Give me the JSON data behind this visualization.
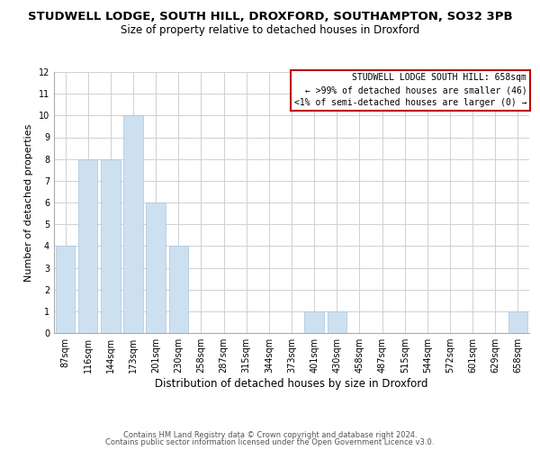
{
  "title": "STUDWELL LODGE, SOUTH HILL, DROXFORD, SOUTHAMPTON, SO32 3PB",
  "subtitle": "Size of property relative to detached houses in Droxford",
  "xlabel": "Distribution of detached houses by size in Droxford",
  "ylabel": "Number of detached properties",
  "bar_labels": [
    "87sqm",
    "116sqm",
    "144sqm",
    "173sqm",
    "201sqm",
    "230sqm",
    "258sqm",
    "287sqm",
    "315sqm",
    "344sqm",
    "373sqm",
    "401sqm",
    "430sqm",
    "458sqm",
    "487sqm",
    "515sqm",
    "544sqm",
    "572sqm",
    "601sqm",
    "629sqm",
    "658sqm"
  ],
  "bar_values": [
    4,
    8,
    8,
    10,
    6,
    4,
    0,
    0,
    0,
    0,
    0,
    1,
    1,
    0,
    0,
    0,
    0,
    0,
    0,
    0,
    1
  ],
  "bar_color": "#cde0f0",
  "bar_edge_color": "#a8c4e0",
  "ylim": [
    0,
    12
  ],
  "yticks": [
    0,
    1,
    2,
    3,
    4,
    5,
    6,
    7,
    8,
    9,
    10,
    11,
    12
  ],
  "annotation_line1": "STUDWELL LODGE SOUTH HILL: 658sqm",
  "annotation_line2": "← >99% of detached houses are smaller (46)",
  "annotation_line3": "<1% of semi-detached houses are larger (0) →",
  "annotation_box_color": "#c00000",
  "footer_line1": "Contains HM Land Registry data © Crown copyright and database right 2024.",
  "footer_line2": "Contains public sector information licensed under the Open Government Licence v3.0.",
  "bg_color": "#ffffff",
  "grid_color": "#d0d0d0",
  "title_fontsize": 9.5,
  "subtitle_fontsize": 8.5,
  "ylabel_fontsize": 8,
  "xlabel_fontsize": 8.5,
  "tick_fontsize": 7,
  "annotation_fontsize": 7,
  "footer_fontsize": 6
}
